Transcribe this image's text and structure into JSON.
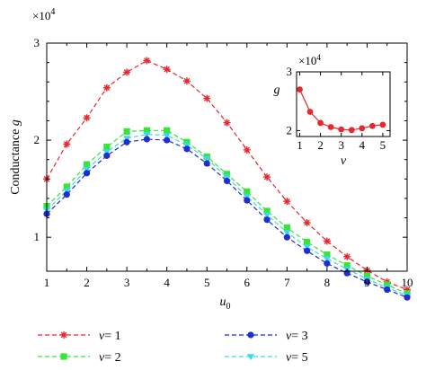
{
  "chart_data": [
    {
      "type": "line",
      "x": [
        1,
        1.5,
        2,
        2.5,
        3,
        3.5,
        4,
        4.5,
        5,
        5.5,
        6,
        6.5,
        7,
        7.5,
        8,
        8.5,
        9,
        9.5,
        10
      ],
      "xlabel": "u0",
      "xlabel_base": "u",
      "xlabel_sub": "0",
      "ylabel": "Conductance g",
      "ylabel_base": "Conductance ",
      "ylabel_var": "g",
      "y_multiplier": "×10",
      "y_multiplier_exp": "4",
      "xlim": [
        1,
        10
      ],
      "ylim": [
        0.65,
        3
      ],
      "x_ticks": [
        1,
        2,
        3,
        4,
        5,
        6,
        7,
        8,
        9,
        10
      ],
      "y_ticks": [
        1,
        2,
        3
      ],
      "grid": false,
      "legend_placement": "bottom, below plot, two columns",
      "series": [
        {
          "name": "v = 1",
          "label_var": "v",
          "label_value": "= 1",
          "color": "#e8272f",
          "marker": "asterisk",
          "line": "dashed",
          "values": [
            1.6,
            1.96,
            2.23,
            2.54,
            2.7,
            2.82,
            2.73,
            2.61,
            2.43,
            2.18,
            1.9,
            1.62,
            1.37,
            1.15,
            0.96,
            0.8,
            0.66,
            0.54,
            0.46
          ]
        },
        {
          "name": "v = 2",
          "label_var": "v",
          "label_value": "= 2",
          "color": "#35e635",
          "marker": "square",
          "line": "dashed",
          "values": [
            1.32,
            1.52,
            1.75,
            1.93,
            2.09,
            2.1,
            2.1,
            1.98,
            1.83,
            1.65,
            1.47,
            1.27,
            1.1,
            0.95,
            0.82,
            0.71,
            0.6,
            0.51,
            0.42
          ]
        },
        {
          "name": "v = 3",
          "label_var": "v",
          "label_value": "= 3",
          "color": "#1f2ed0",
          "marker": "circle",
          "line": "dashed",
          "values": [
            1.24,
            1.44,
            1.66,
            1.84,
            1.98,
            2.01,
            2.0,
            1.91,
            1.76,
            1.58,
            1.38,
            1.18,
            1.0,
            0.86,
            0.73,
            0.63,
            0.54,
            0.46,
            0.38
          ]
        },
        {
          "name": "v = 5",
          "label_var": "v",
          "label_value": "= 5",
          "color": "#3ad8f0",
          "marker": "triangle-down",
          "line": "dashed",
          "values": [
            1.28,
            1.48,
            1.7,
            1.88,
            2.02,
            2.06,
            2.05,
            1.95,
            1.81,
            1.62,
            1.42,
            1.23,
            1.05,
            0.9,
            0.78,
            0.67,
            0.57,
            0.48,
            0.4
          ]
        }
      ]
    },
    {
      "type": "line",
      "role": "inset",
      "x": [
        1,
        1.5,
        2,
        2.5,
        3,
        3.5,
        4,
        4.5,
        5
      ],
      "xlabel": "v",
      "ylabel": "g",
      "y_multiplier": "×10",
      "y_multiplier_exp": "4",
      "xlim": [
        0.85,
        5.35
      ],
      "ylim": [
        1.9,
        3
      ],
      "x_ticks": [
        1,
        2,
        3,
        4,
        5
      ],
      "y_ticks": [
        2,
        3
      ],
      "series": [
        {
          "color": "#e8272f",
          "marker": "circle",
          "line": "solid",
          "values": [
            2.7,
            2.32,
            2.13,
            2.06,
            2.02,
            2.01,
            2.04,
            2.08,
            2.1
          ]
        }
      ]
    }
  ]
}
